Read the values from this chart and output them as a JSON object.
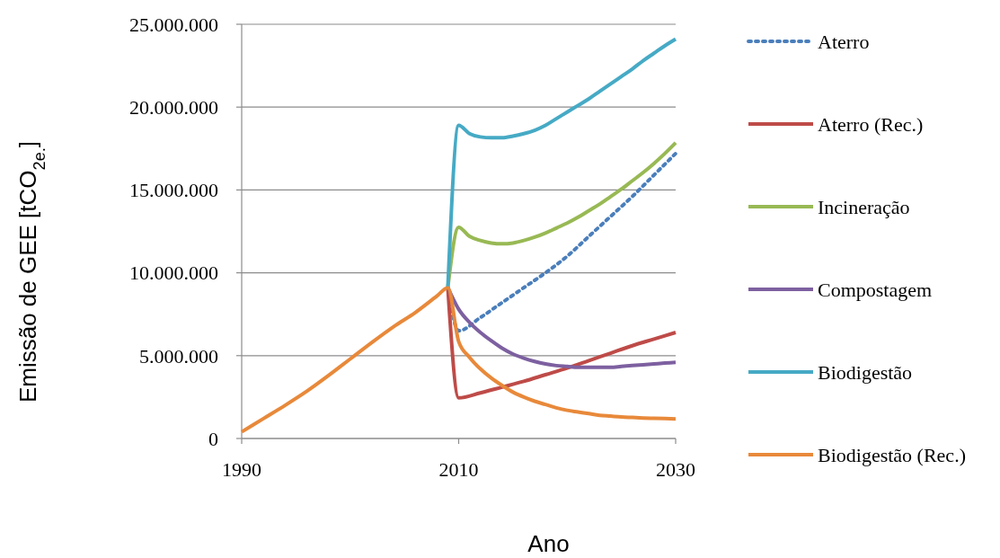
{
  "chart_data": {
    "type": "line",
    "xlabel": "Ano",
    "ylabel": "Emissão de GEE [tCO$_{2e.}$]",
    "xlim": [
      1990,
      2030
    ],
    "xticks": [
      1990,
      2010,
      2030
    ],
    "ylim": [
      0,
      25000000
    ],
    "yticks": [
      0,
      {
        "value": 5000000,
        "label": "5.000.000"
      },
      {
        "value": 10000000,
        "label": "10.000.000"
      },
      {
        "value": 15000000,
        "label": "15.000.000"
      },
      {
        "value": 20000000,
        "label": "20.000.000"
      },
      {
        "value": 25000000,
        "label": "25.000.000"
      }
    ],
    "grid": "y",
    "legend": "right",
    "series": [
      {
        "name": "Aterro",
        "color": "#4a7ebb",
        "line_style": "dotted",
        "x": [
          2009,
          2010,
          2012,
          2014,
          2016,
          2018,
          2020,
          2022,
          2024,
          2026,
          2028,
          2030
        ],
        "values": [
          9100000,
          6500000,
          7300000,
          8200000,
          9100000,
          10000000,
          11000000,
          12200000,
          13400000,
          14600000,
          15900000,
          17200000
        ]
      },
      {
        "name": "Aterro (Rec.)",
        "color": "#be4b48",
        "line_style": "solid",
        "x": [
          2009,
          2010,
          2012,
          2014,
          2016,
          2018,
          2020,
          2022,
          2024,
          2026,
          2028,
          2030
        ],
        "values": [
          9100000,
          2450000,
          2750000,
          3100000,
          3450000,
          3850000,
          4250000,
          4700000,
          5150000,
          5600000,
          6000000,
          6400000
        ]
      },
      {
        "name": "Incineração",
        "color": "#98b954",
        "line_style": "solid",
        "x": [
          2009,
          2010,
          2011,
          2012,
          2013,
          2014,
          2015,
          2016,
          2017,
          2018,
          2019,
          2020,
          2021,
          2022,
          2023,
          2024,
          2025,
          2026,
          2027,
          2028,
          2029,
          2030
        ],
        "values": [
          9100000,
          12750000,
          12200000,
          11950000,
          11800000,
          11750000,
          11800000,
          11950000,
          12150000,
          12400000,
          12700000,
          13000000,
          13350000,
          13750000,
          14150000,
          14600000,
          15050000,
          15550000,
          16050000,
          16600000,
          17200000,
          17850000
        ]
      },
      {
        "name": "Compostagem",
        "color": "#7d60a0",
        "line_style": "solid",
        "x": [
          2009,
          2010,
          2011,
          2012,
          2013,
          2014,
          2015,
          2016,
          2017,
          2018,
          2019,
          2020,
          2021,
          2022,
          2023,
          2024,
          2025,
          2026,
          2027,
          2028,
          2029,
          2030
        ],
        "values": [
          9100000,
          7800000,
          7000000,
          6400000,
          5900000,
          5450000,
          5100000,
          4850000,
          4650000,
          4500000,
          4400000,
          4350000,
          4300000,
          4300000,
          4300000,
          4300000,
          4350000,
          4400000,
          4450000,
          4500000,
          4550000,
          4600000
        ]
      },
      {
        "name": "Biodigestão",
        "color": "#46aac5",
        "line_style": "solid",
        "x": [
          2009,
          2010,
          2011,
          2012,
          2013,
          2014,
          2015,
          2016,
          2017,
          2018,
          2019,
          2020,
          2021,
          2022,
          2023,
          2024,
          2025,
          2026,
          2027,
          2028,
          2029,
          2030
        ],
        "values": [
          9100000,
          18900000,
          18400000,
          18200000,
          18150000,
          18150000,
          18250000,
          18400000,
          18600000,
          18900000,
          19300000,
          19700000,
          20100000,
          20500000,
          20950000,
          21400000,
          21850000,
          22300000,
          22800000,
          23250000,
          23700000,
          24100000
        ]
      },
      {
        "name": "Biodigestão (Rec.)",
        "color": "#e8893a",
        "line_style": "solid",
        "x": [
          1990,
          1992,
          1994,
          1996,
          1998,
          2000,
          2002,
          2004,
          2006,
          2008,
          2009,
          2010,
          2011,
          2012,
          2013,
          2014,
          2015,
          2016,
          2017,
          2018,
          2019,
          2020,
          2021,
          2022,
          2023,
          2024,
          2025,
          2026,
          2027,
          2028,
          2029,
          2030
        ],
        "values": [
          400000,
          1200000,
          2000000,
          2850000,
          3800000,
          4800000,
          5800000,
          6750000,
          7600000,
          8600000,
          9100000,
          5850000,
          4900000,
          4200000,
          3650000,
          3200000,
          2800000,
          2500000,
          2250000,
          2050000,
          1850000,
          1700000,
          1600000,
          1500000,
          1400000,
          1350000,
          1300000,
          1270000,
          1240000,
          1220000,
          1200000,
          1180000
        ]
      }
    ]
  }
}
